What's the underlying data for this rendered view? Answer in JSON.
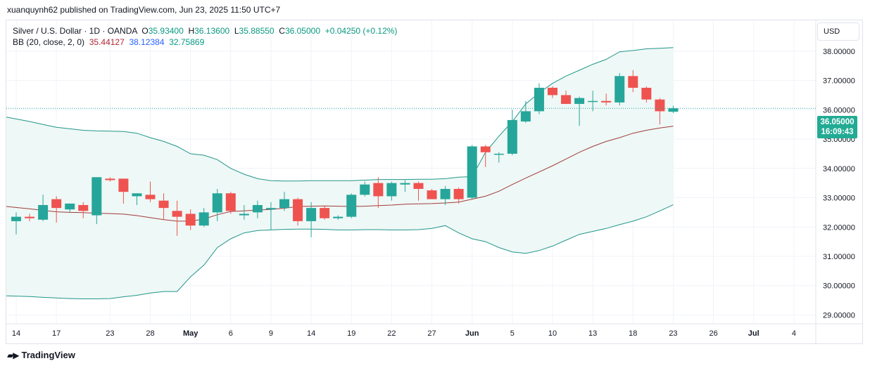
{
  "attribution": "xuanquynh62 published on TradingView.com, Jun 23, 2025 11:50 UTC+7",
  "legend": {
    "symbol": "Silver / U.S. Dollar · 1D · OANDA",
    "o_label": "O",
    "o": "35.93400",
    "h_label": "H",
    "h": "36.13600",
    "l_label": "L",
    "l": "35.88550",
    "c_label": "C",
    "c": "36.05000",
    "change": "+0.04250 (+0.12%)",
    "bb_name": "BB (20, close, 2, 0)",
    "bb_basis": "35.44127",
    "bb_upper": "38.12384",
    "bb_lower": "32.75869"
  },
  "currency": "USD",
  "last_price": {
    "value": "36.05000",
    "countdown": "16:09:43"
  },
  "logo": "TradingView",
  "colors": {
    "up": "#26a69a",
    "down": "#ef5350",
    "band": "#22968a",
    "band_fill": "#eef8f6",
    "basis": "#a13c3a",
    "grid": "#f0f3fa",
    "axis_text": "#131722"
  },
  "chart_data": {
    "type": "candlestick",
    "ylim": [
      28.7,
      39.05
    ],
    "y_ticks": [
      "29.00000",
      "30.00000",
      "31.00000",
      "32.00000",
      "33.00000",
      "34.00000",
      "35.00000",
      "36.00000",
      "37.00000",
      "38.00000"
    ],
    "x_ticks": [
      {
        "label": "14",
        "i": 0
      },
      {
        "label": "17",
        "i": 3
      },
      {
        "label": "23",
        "i": 7
      },
      {
        "label": "28",
        "i": 10
      },
      {
        "label": "May",
        "i": 13
      },
      {
        "label": "6",
        "i": 16
      },
      {
        "label": "9",
        "i": 19
      },
      {
        "label": "14",
        "i": 22
      },
      {
        "label": "19",
        "i": 25
      },
      {
        "label": "22",
        "i": 28
      },
      {
        "label": "27",
        "i": 31
      },
      {
        "label": "Jun",
        "i": 34
      },
      {
        "label": "5",
        "i": 37
      },
      {
        "label": "10",
        "i": 40
      },
      {
        "label": "13",
        "i": 43
      },
      {
        "label": "18",
        "i": 46
      },
      {
        "label": "23",
        "i": 49
      },
      {
        "label": "26",
        "i": 52
      },
      {
        "label": "Jul",
        "i": 55
      },
      {
        "label": "4",
        "i": 58
      }
    ],
    "candles": [
      {
        "o": 32.2,
        "h": 32.5,
        "l": 31.75,
        "c": 32.35
      },
      {
        "o": 32.35,
        "h": 32.45,
        "l": 32.2,
        "c": 32.3
      },
      {
        "o": 32.25,
        "h": 33.1,
        "l": 32.2,
        "c": 32.75
      },
      {
        "o": 32.95,
        "h": 33.05,
        "l": 32.15,
        "c": 32.65
      },
      {
        "o": 32.6,
        "h": 32.8,
        "l": 32.5,
        "c": 32.8
      },
      {
        "o": 32.75,
        "h": 32.85,
        "l": 32.3,
        "c": 32.55
      },
      {
        "o": 32.4,
        "h": 33.7,
        "l": 32.1,
        "c": 33.7
      },
      {
        "o": 33.65,
        "h": 33.7,
        "l": 33.55,
        "c": 33.6
      },
      {
        "o": 33.65,
        "h": 33.65,
        "l": 32.8,
        "c": 33.2
      },
      {
        "o": 33.05,
        "h": 33.15,
        "l": 32.75,
        "c": 33.15
      },
      {
        "o": 33.1,
        "h": 33.55,
        "l": 32.85,
        "c": 32.95
      },
      {
        "o": 32.9,
        "h": 33.15,
        "l": 32.25,
        "c": 32.65
      },
      {
        "o": 32.55,
        "h": 32.9,
        "l": 31.7,
        "c": 32.35
      },
      {
        "o": 32.45,
        "h": 32.6,
        "l": 31.9,
        "c": 32.05
      },
      {
        "o": 32.05,
        "h": 32.65,
        "l": 32.0,
        "c": 32.5
      },
      {
        "o": 32.5,
        "h": 33.3,
        "l": 32.2,
        "c": 33.15
      },
      {
        "o": 33.15,
        "h": 33.2,
        "l": 32.45,
        "c": 32.55
      },
      {
        "o": 32.4,
        "h": 32.75,
        "l": 32.25,
        "c": 32.45
      },
      {
        "o": 32.5,
        "h": 32.9,
        "l": 32.3,
        "c": 32.75
      },
      {
        "o": 32.6,
        "h": 32.85,
        "l": 31.9,
        "c": 32.65
      },
      {
        "o": 32.65,
        "h": 33.2,
        "l": 32.55,
        "c": 32.95
      },
      {
        "o": 32.95,
        "h": 33.0,
        "l": 32.05,
        "c": 32.2
      },
      {
        "o": 32.2,
        "h": 32.85,
        "l": 31.65,
        "c": 32.65
      },
      {
        "o": 32.65,
        "h": 32.7,
        "l": 32.25,
        "c": 32.3
      },
      {
        "o": 32.3,
        "h": 32.4,
        "l": 32.25,
        "c": 32.35
      },
      {
        "o": 32.35,
        "h": 33.15,
        "l": 32.3,
        "c": 33.1
      },
      {
        "o": 33.1,
        "h": 33.55,
        "l": 33.05,
        "c": 33.45
      },
      {
        "o": 33.5,
        "h": 33.7,
        "l": 32.65,
        "c": 33.05
      },
      {
        "o": 33.05,
        "h": 33.55,
        "l": 32.9,
        "c": 33.5
      },
      {
        "o": 33.45,
        "h": 33.6,
        "l": 33.2,
        "c": 33.5
      },
      {
        "o": 33.5,
        "h": 33.55,
        "l": 32.9,
        "c": 33.3
      },
      {
        "o": 33.25,
        "h": 33.3,
        "l": 32.95,
        "c": 32.95
      },
      {
        "o": 32.95,
        "h": 33.4,
        "l": 32.75,
        "c": 33.3
      },
      {
        "o": 33.3,
        "h": 33.35,
        "l": 32.8,
        "c": 32.95
      },
      {
        "o": 33.0,
        "h": 34.8,
        "l": 32.95,
        "c": 34.75
      },
      {
        "o": 34.75,
        "h": 34.8,
        "l": 34.05,
        "c": 34.55
      },
      {
        "o": 34.5,
        "h": 34.55,
        "l": 34.2,
        "c": 34.5
      },
      {
        "o": 34.5,
        "h": 36.0,
        "l": 34.45,
        "c": 35.65
      },
      {
        "o": 35.6,
        "h": 36.3,
        "l": 35.55,
        "c": 35.95
      },
      {
        "o": 35.95,
        "h": 36.9,
        "l": 35.85,
        "c": 36.75
      },
      {
        "o": 36.75,
        "h": 36.8,
        "l": 36.4,
        "c": 36.5
      },
      {
        "o": 36.5,
        "h": 36.65,
        "l": 36.2,
        "c": 36.2
      },
      {
        "o": 36.2,
        "h": 36.45,
        "l": 35.45,
        "c": 36.4
      },
      {
        "o": 36.3,
        "h": 36.65,
        "l": 35.95,
        "c": 36.3
      },
      {
        "o": 36.3,
        "h": 36.55,
        "l": 36.15,
        "c": 36.25
      },
      {
        "o": 36.25,
        "h": 37.25,
        "l": 36.15,
        "c": 37.15
      },
      {
        "o": 37.15,
        "h": 37.35,
        "l": 36.6,
        "c": 36.75
      },
      {
        "o": 36.75,
        "h": 36.8,
        "l": 36.25,
        "c": 36.35
      },
      {
        "o": 36.35,
        "h": 36.4,
        "l": 35.5,
        "c": 35.95
      },
      {
        "o": 35.934,
        "h": 36.136,
        "l": 35.8855,
        "c": 36.05
      }
    ],
    "bb_upper": [
      35.75,
      35.6,
      35.5,
      35.4,
      35.35,
      35.3,
      35.28,
      35.27,
      35.26,
      35.2,
      35.05,
      34.92,
      34.75,
      34.5,
      34.45,
      34.3,
      34.0,
      33.8,
      33.65,
      33.58,
      33.57,
      33.57,
      33.58,
      33.58,
      33.58,
      33.58,
      33.6,
      33.62,
      33.62,
      33.62,
      33.63,
      33.63,
      33.65,
      33.7,
      33.72,
      34.55,
      35.1,
      35.6,
      36.2,
      36.58,
      36.9,
      37.15,
      37.35,
      37.55,
      37.72,
      37.98,
      38.02,
      38.08,
      38.1,
      38.12384
    ],
    "bb_basis": [
      32.7,
      32.62,
      32.57,
      32.52,
      32.5,
      32.49,
      32.47,
      32.46,
      32.44,
      32.39,
      32.32,
      32.25,
      32.2,
      32.2,
      32.27,
      32.42,
      32.53,
      32.55,
      32.58,
      32.6,
      32.64,
      32.7,
      32.71,
      32.72,
      32.71,
      32.7,
      32.71,
      32.73,
      32.75,
      32.78,
      32.79,
      32.8,
      32.82,
      32.85,
      32.95,
      33.05,
      33.22,
      33.45,
      33.67,
      33.88,
      34.09,
      34.32,
      34.55,
      34.75,
      34.92,
      35.05,
      35.2,
      35.3,
      35.38,
      35.44127
    ],
    "bb_lower": [
      29.65,
      29.63,
      29.6,
      29.58,
      29.56,
      29.55,
      29.55,
      29.56,
      29.62,
      29.67,
      29.75,
      29.8,
      29.8,
      30.3,
      30.7,
      31.3,
      31.6,
      31.8,
      31.88,
      31.9,
      31.92,
      31.93,
      31.93,
      31.92,
      31.9,
      31.9,
      31.91,
      31.91,
      31.9,
      31.9,
      31.91,
      31.95,
      32.05,
      31.8,
      31.6,
      31.5,
      31.3,
      31.15,
      31.1,
      31.2,
      31.35,
      31.55,
      31.75,
      31.85,
      31.95,
      32.08,
      32.2,
      32.35,
      32.55,
      32.75869
    ]
  }
}
